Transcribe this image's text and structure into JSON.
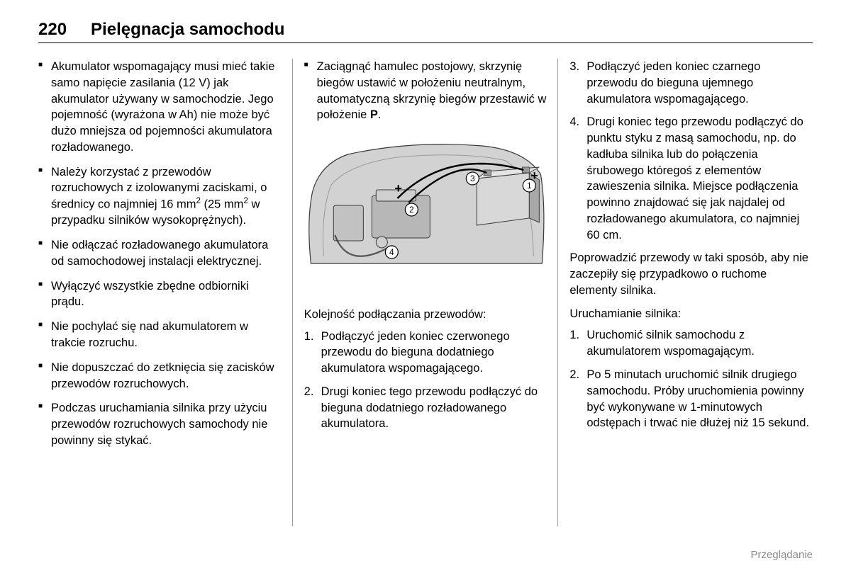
{
  "page_number": "220",
  "page_title": "Pielęgnacja samochodu",
  "footer": "Przeglądanie",
  "col1": {
    "bullets": [
      "Akumulator wspomagający musi mieć takie samo napięcie zasilania (12 V) jak akumulator używany w samochodzie. Jego pojemność (wyrażona w Ah) nie może być dużo mniejsza od pojemności akumulatora rozładowanego.",
      "Należy korzystać z przewodów rozruchowych z izolowanymi zaciskami, o średnicy co najmniej 16 mm² (25 mm² w przypadku silników wysokoprężnych).",
      "Nie odłączać rozładowanego akumulatora od samochodowej instalacji elektrycznej.",
      "Wyłączyć wszystkie zbędne odbiorniki prądu.",
      "Nie pochylać się nad akumulatorem w trakcie rozruchu.",
      "Nie dopuszczać do zetknięcia się zacisków przewodów rozruchowych.",
      "Podczas uruchamiania silnika przy użyciu przewodów rozruchowych samochody nie powinny się stykać."
    ]
  },
  "col2": {
    "top_bullet": "Zaciągnąć hamulec postojowy, skrzynię biegów ustawić w położeniu neutralnym, automatyczną skrzynię biegów przestawić w położenie ",
    "top_bullet_bold": "P",
    "top_bullet_tail": ".",
    "list_intro": "Kolejność podłączania przewodów:",
    "steps": [
      "Podłączyć jeden koniec czerwonego przewodu do bieguna dodatniego akumulatora wspomagającego.",
      "Drugi koniec tego przewodu podłączyć do bieguna dodatniego rozładowanego akumulatora."
    ],
    "diagram": {
      "colors": {
        "outline": "#3a3a3a",
        "body_fill": "#d2d2d2",
        "engine_fill": "#b7b7b7",
        "battery_fill": "#d8d8d8",
        "battery_side": "#a8a8a8",
        "cable_red": "#000000",
        "marker_stroke": "#000000",
        "marker_fill": "#ffffff",
        "plus": "#000000",
        "minus": "#000000"
      },
      "labels": {
        "m1": "1",
        "m2": "2",
        "m3": "3",
        "m4": "4"
      }
    }
  },
  "col3": {
    "steps_cont": [
      "Podłączyć jeden koniec czarnego przewodu do bieguna ujemnego akumulatora wspomagającego.",
      "Drugi koniec tego przewodu podłączyć do punktu styku z masą samochodu, np. do kadłuba silnika lub do połączenia śrubowego któregoś z elementów zawieszenia silnika. Miejsce podłączenia powinno znajdować się jak najdalej od rozładowanego akumulatora, co najmniej 60 cm."
    ],
    "steps_start_num": 3,
    "para1": "Poprowadzić przewody w taki sposób, aby nie zaczepiły się przypadkowo o ruchome elementy silnika.",
    "sub_heading": "Uruchamianie silnika:",
    "sub_steps": [
      "Uruchomić silnik samochodu z akumulatorem wspomagającym.",
      "Po 5 minutach uruchomić silnik drugiego samochodu. Próby uruchomienia powinny być wykonywane w 1-minutowych odstępach i trwać nie dłużej niż 15 sekund."
    ]
  }
}
